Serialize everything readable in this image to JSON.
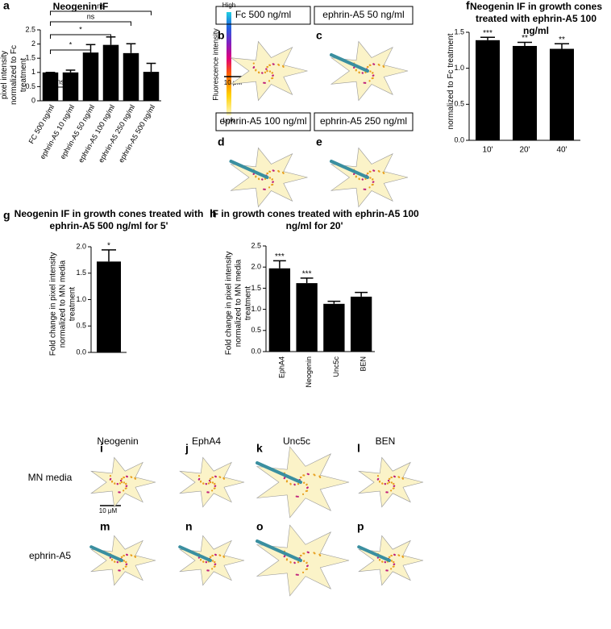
{
  "chart_data": [
    {
      "type": "bar",
      "panel": "a",
      "title": "Neogenin IF",
      "y_label": "Fold change in pixel intensity normalized to Fc treatment",
      "categories": [
        "FC 500 ng/ml",
        "ephrin-A5 10 ng/ml",
        "ephrin-A5 50 ng/ml",
        "ephrin-A5 100 ng/ml",
        "ephrin-A5 250 ng/ml",
        "ephrin-A5 500 ng/ml"
      ],
      "values": [
        1.0,
        1.0,
        1.7,
        1.97,
        1.68,
        1.02
      ],
      "errors": [
        0,
        0.08,
        0.28,
        0.28,
        0.33,
        0.3
      ],
      "comparisons": [
        "ns",
        "*",
        "*",
        "ns",
        "ns"
      ],
      "color": "#000000",
      "ylim": [
        0,
        2.5
      ],
      "yticks": [
        0,
        0.5,
        1,
        1.5,
        2,
        2.5
      ]
    },
    {
      "type": "bar",
      "panel": "f",
      "title": "Neogenin IF in growth cones treated with ephrin-A5 100 ng/ml",
      "y_label": "normalized to Fc treatment",
      "categories": [
        "10'",
        "20'",
        "40'"
      ],
      "values": [
        1.39,
        1.31,
        1.27
      ],
      "errors": [
        0.04,
        0.05,
        0.07
      ],
      "annotations": [
        "***",
        "**",
        "**"
      ],
      "color": "#000000",
      "ylim": [
        0,
        1.5
      ],
      "yticks": [
        {
          "value": 0,
          "label": "0.0"
        },
        {
          "value": 0.5,
          "label": "0.5"
        },
        {
          "value": 1,
          "label": "1.0"
        },
        {
          "value": 1.5,
          "label": "1.5"
        }
      ]
    },
    {
      "type": "bar",
      "panel": "g",
      "title": "Neogenin IF in growth cones treated with ephrin-A5 500 ng/ml for 5'",
      "y_label": "Fold change in pixel intensity normalized to MN media treatment",
      "categories": [
        null
      ],
      "values": [
        1.72
      ],
      "errors": [
        0.22
      ],
      "annotations": [
        "*"
      ],
      "color": "#000000",
      "ylim": [
        0,
        2
      ],
      "yticks": [
        {
          "value": 0,
          "label": "0.0"
        },
        {
          "value": 0.5,
          "label": "0.5"
        },
        {
          "value": 1,
          "label": "1.0"
        },
        {
          "value": 1.5,
          "label": "1.5"
        },
        {
          "value": 2,
          "label": "2.0"
        }
      ]
    },
    {
      "type": "bar",
      "panel": "h",
      "title": "IF in growth cones treated with ephrin-A5 100 ng/ml for 20'",
      "y_label": "Fold change in pixel intensity normalized to MN media treatment",
      "categories": [
        "EphA4",
        "Neogenin",
        "Unc5c",
        "BEN"
      ],
      "values": [
        1.97,
        1.62,
        1.13,
        1.3
      ],
      "errors": [
        0.18,
        0.12,
        0.06,
        0.1
      ],
      "annotations": [
        "***",
        "***",
        null,
        null
      ],
      "color": "#000000",
      "ylim": [
        0,
        2.5
      ],
      "yticks": [
        {
          "value": 0,
          "label": "0.0"
        },
        {
          "value": 0.5,
          "label": "0.5"
        },
        {
          "value": 1,
          "label": "1.0"
        },
        {
          "value": 1.5,
          "label": "1.5"
        },
        {
          "value": 2,
          "label": "2.0"
        },
        {
          "value": 2.5,
          "label": "2.5"
        }
      ]
    }
  ],
  "colorbar": {
    "high": "High",
    "low": "Low",
    "label": "Fluorescence intensity"
  },
  "top_panels": [
    {
      "letter": "b",
      "label": "Fc 500 ng/ml"
    },
    {
      "letter": "c",
      "label": "ephrin-A5 50 ng/ml"
    },
    {
      "letter": "d",
      "label": "ephrin-A5 100 ng/ml"
    },
    {
      "letter": "e",
      "label": "ephrin-A5 250 ng/ml"
    }
  ],
  "top_scale_bar": "10 μM",
  "grid": {
    "columns": [
      "Neogenin",
      "EphA4",
      "Unc5c",
      "BEN"
    ],
    "rows": [
      "MN media",
      "ephrin-A5"
    ],
    "letters": [
      [
        "i",
        "j",
        "k",
        "l"
      ],
      [
        "m",
        "n",
        "o",
        "p"
      ]
    ],
    "scale_bar": "10 μM"
  }
}
